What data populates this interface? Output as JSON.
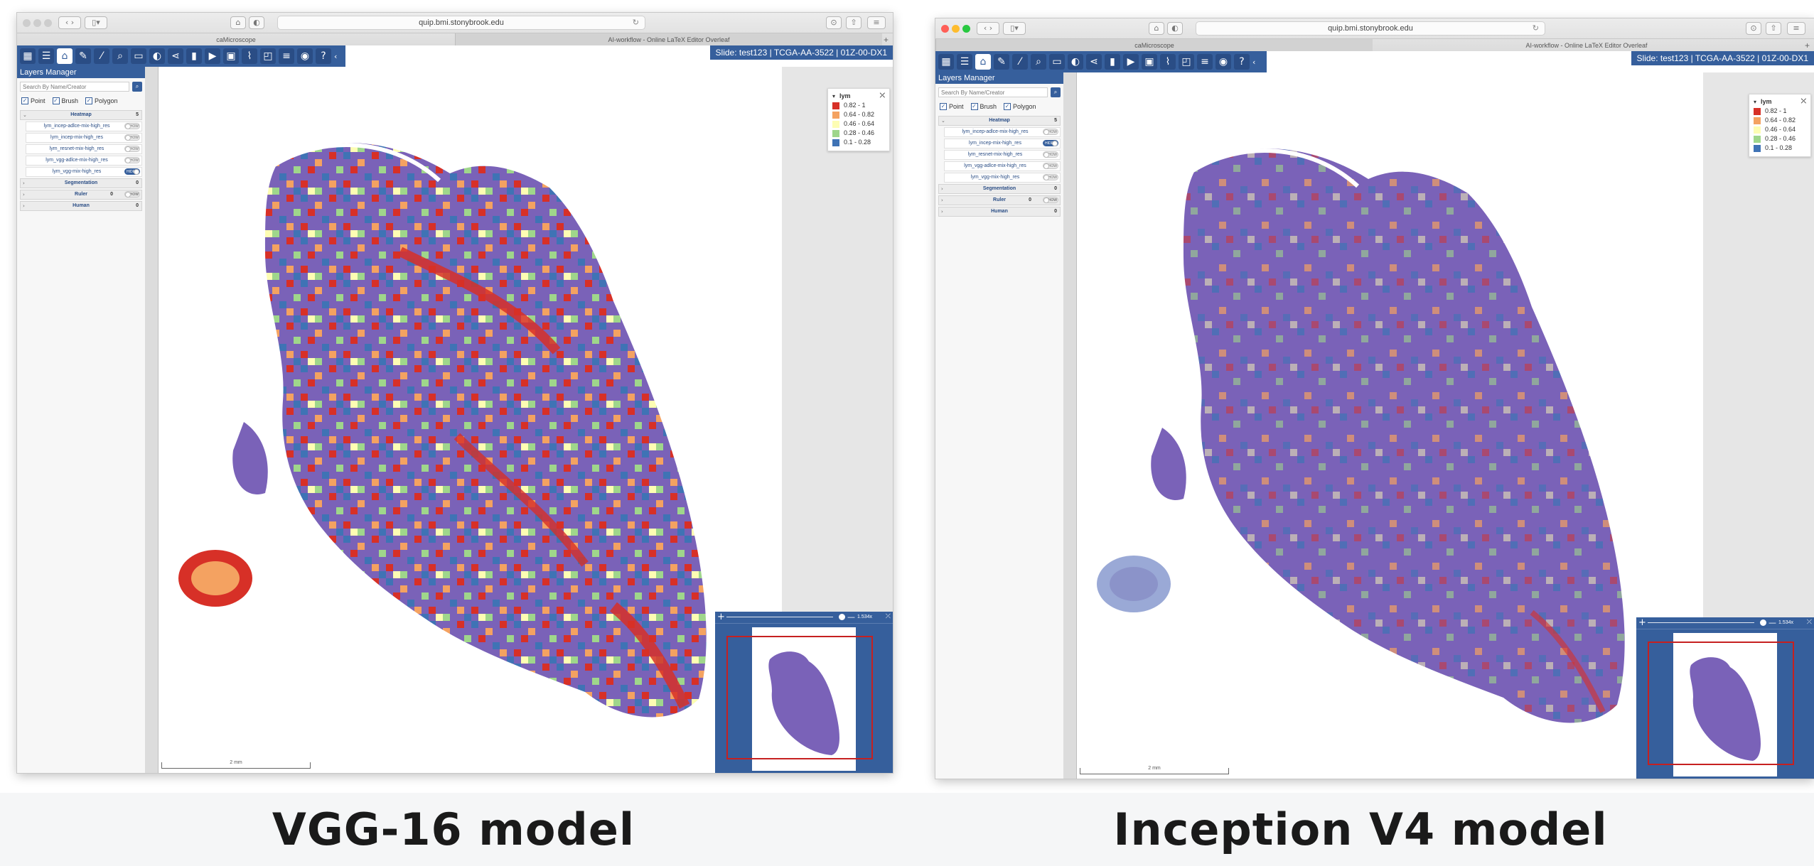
{
  "captions": {
    "left": "VGG-16 model",
    "right": "Inception V4 model"
  },
  "browser": {
    "url": "quip.bmi.stonybrook.edu",
    "tab_1": "caMicroscope",
    "tab_2": "AI-workflow - Online LaTeX Editor Overleaf"
  },
  "toolbar": {
    "tools": [
      {
        "icon": "apps-icon",
        "glyph": "▦"
      },
      {
        "icon": "layers-list-icon",
        "glyph": "☰"
      },
      {
        "icon": "home-icon",
        "glyph": "⌂"
      },
      {
        "icon": "pen-icon",
        "glyph": "✎"
      },
      {
        "icon": "magic-wand-icon",
        "glyph": "⁄"
      },
      {
        "icon": "search-icon",
        "glyph": "⌕"
      },
      {
        "icon": "ruler-icon",
        "glyph": "▭"
      },
      {
        "icon": "contrast-icon",
        "glyph": "◐"
      },
      {
        "icon": "share-icon",
        "glyph": "⋖"
      },
      {
        "icon": "filmstrip-icon",
        "glyph": "▮"
      },
      {
        "icon": "label-icon",
        "glyph": "▶"
      },
      {
        "icon": "image-icon",
        "glyph": "▣"
      },
      {
        "icon": "chart-line-icon",
        "glyph": "⌇"
      },
      {
        "icon": "window-icon",
        "glyph": "◰"
      },
      {
        "icon": "checklist-icon",
        "glyph": "≡"
      },
      {
        "icon": "camera-icon",
        "glyph": "◉"
      },
      {
        "icon": "help-icon",
        "glyph": "?"
      }
    ]
  },
  "slide_info": "Slide: test123 | TCGA-AA-3522 | 01Z-00-DX1",
  "layers_manager": {
    "title": "Layers Manager",
    "search_placeholder": "Search By Name/Creator",
    "filters": {
      "point": "Point",
      "brush": "Brush",
      "polygon": "Polygon"
    },
    "heatmap": {
      "label": "Heatmap",
      "count": "5"
    },
    "layers": {
      "l1": "lym_incep-adlce-mix-high_res",
      "l2": "lym_incep-mix-high_res",
      "l3": "lym_resnet-mix-high_res",
      "l4": "lym_vgg-adlce-mix-high_res",
      "l5": "lym_vgg-mix-high_res"
    },
    "toggle_show": "SHOW",
    "toggle_hide": "HIDE",
    "segmentation": {
      "label": "Segmentation",
      "count": "0"
    },
    "ruler": {
      "label": "Ruler",
      "count": "0"
    },
    "human": {
      "label": "Human",
      "count": "0"
    }
  },
  "legend": {
    "title": "lym",
    "items": [
      {
        "label": "0.82 - 1",
        "color": "#d73027"
      },
      {
        "label": "0.64 - 0.82",
        "color": "#f4a261"
      },
      {
        "label": "0.46 - 0.64",
        "color": "#fdfdb3"
      },
      {
        "label": "0.28 - 0.46",
        "color": "#9fd68b"
      },
      {
        "label": "0.1 - 0.28",
        "color": "#3f73b5"
      }
    ]
  },
  "scale_label": "2 mm",
  "overview": {
    "zoom": "1.534x"
  },
  "colors": {
    "accent": "#365f9c",
    "tissue": "#7a62b8",
    "redbox": "#c62020"
  }
}
